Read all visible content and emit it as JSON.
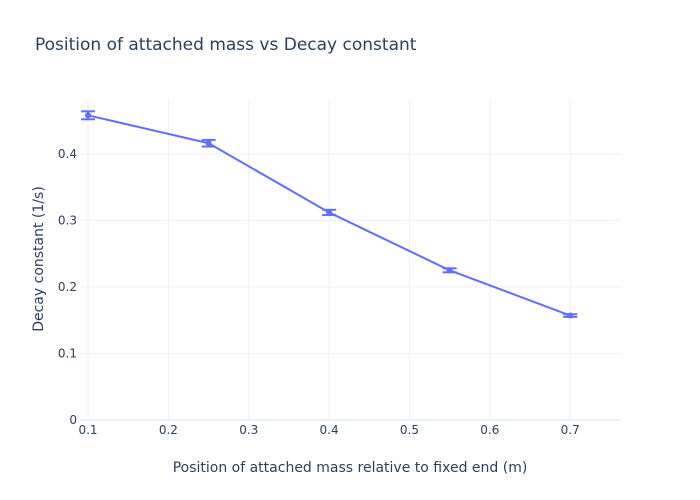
{
  "chart_data": {
    "type": "line",
    "title": "Position of attached mass vs Decay constant",
    "xlabel": "Position of attached mass relative to fixed end (m)",
    "ylabel": "Decay constant (1/s)",
    "xlim": [
      0.09,
      0.762
    ],
    "ylim": [
      0,
      0.481
    ],
    "xticks": [
      0.1,
      0.2,
      0.3,
      0.4,
      0.5,
      0.6,
      0.7
    ],
    "yticks": [
      0,
      0.1,
      0.2,
      0.3,
      0.4
    ],
    "xtick_labels": [
      "0.1",
      "0.2",
      "0.3",
      "0.4",
      "0.5",
      "0.6",
      "0.7"
    ],
    "ytick_labels": [
      "0",
      "0.1",
      "0.2",
      "0.3",
      "0.4"
    ],
    "grid": true,
    "line_color": "#636efa",
    "series": [
      {
        "x": [
          0.1,
          0.25,
          0.4,
          0.55,
          0.7
        ],
        "y": [
          0.458,
          0.416,
          0.312,
          0.225,
          0.157
        ],
        "error": [
          0.006,
          0.005,
          0.004,
          0.003,
          0.002
        ]
      }
    ]
  }
}
